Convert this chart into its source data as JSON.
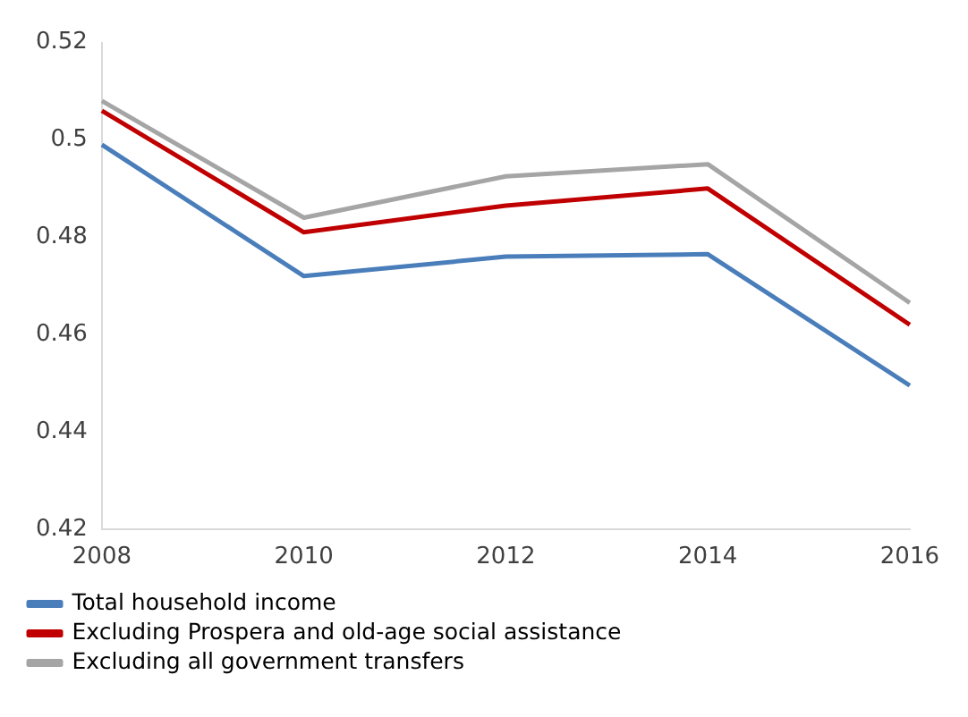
{
  "chart_data": {
    "type": "line",
    "categories": [
      "2008",
      "2010",
      "2012",
      "2014",
      "2016"
    ],
    "series": [
      {
        "name": "Total household income",
        "color": "#4a7ebb",
        "values": [
          0.499,
          0.472,
          0.476,
          0.4765,
          0.4495
        ]
      },
      {
        "name": "Excluding Prospera and old-age social assistance",
        "color": "#c00000",
        "values": [
          0.506,
          0.481,
          0.4865,
          0.49,
          0.462
        ]
      },
      {
        "name": "Excluding all government transfers",
        "color": "#a5a5a5",
        "values": [
          0.508,
          0.484,
          0.4925,
          0.495,
          0.4665
        ]
      }
    ],
    "ylim": [
      0.42,
      0.52
    ],
    "yticks": [
      0.42,
      0.44,
      0.46,
      0.48,
      0.5,
      0.52
    ],
    "grid": false,
    "legend": "bottom",
    "marker": "none",
    "line_style": "solid"
  }
}
